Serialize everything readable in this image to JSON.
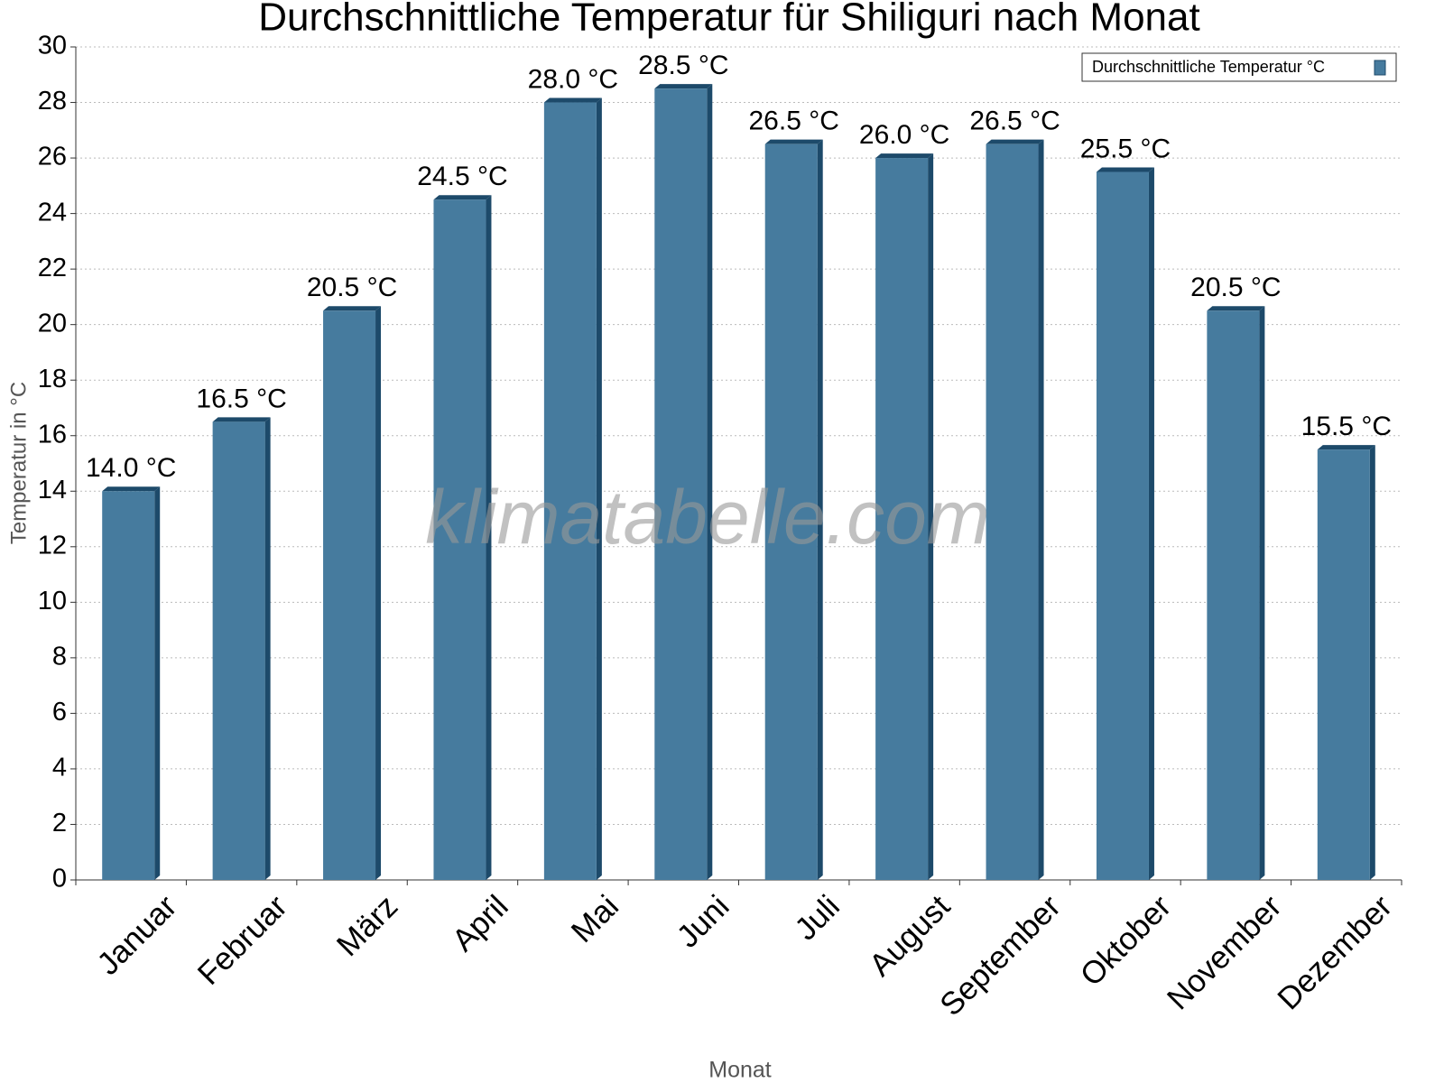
{
  "chart_data": {
    "type": "bar",
    "title": "Durchschnittliche Temperatur für Shiliguri nach Monat",
    "x_label": "Monat",
    "y_label": "Temperatur in °C",
    "watermark": "klimatabelle.com",
    "categories": [
      "Januar",
      "Februar",
      "März",
      "April",
      "Mai",
      "Juni",
      "Juli",
      "August",
      "September",
      "Oktober",
      "November",
      "Dezember"
    ],
    "series": [
      {
        "name": "Durchschnittliche Temperatur °C",
        "color": "#467b9e",
        "values": [
          14.0,
          16.5,
          20.5,
          24.5,
          28.0,
          28.5,
          26.5,
          26.0,
          26.5,
          25.5,
          20.5,
          15.5
        ],
        "value_labels": [
          "14.0 °C",
          "16.5 °C",
          "20.5 °C",
          "24.5 °C",
          "28.0 °C",
          "28.5 °C",
          "26.5 °C",
          "26.0 °C",
          "26.5 °C",
          "25.5 °C",
          "20.5 °C",
          "15.5 °C"
        ]
      }
    ],
    "ylim": [
      0,
      30
    ],
    "yticks": [
      0,
      2,
      4,
      6,
      8,
      10,
      12,
      14,
      16,
      18,
      20,
      22,
      24,
      26,
      28,
      30
    ],
    "grid": true,
    "legend": "top-right"
  }
}
